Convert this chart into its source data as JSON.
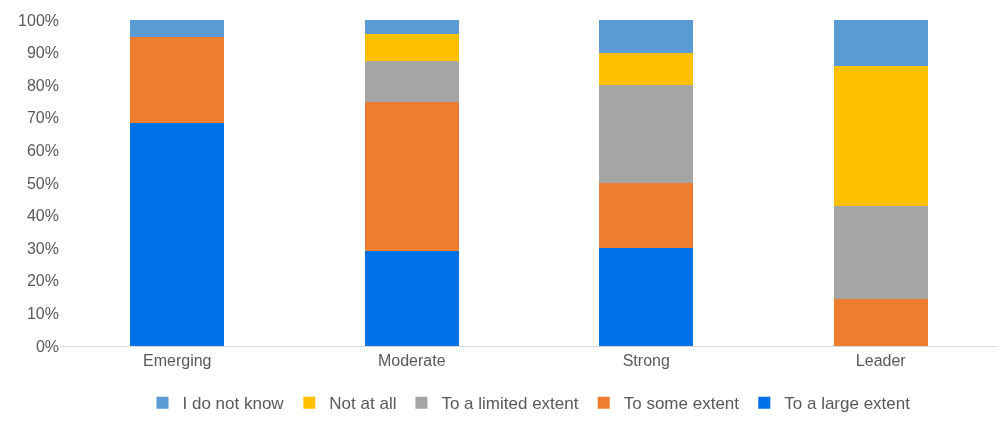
{
  "chart_data": {
    "type": "bar",
    "stacked": true,
    "categories": [
      "Emerging",
      "Moderate",
      "Strong",
      "Leader"
    ],
    "series": [
      {
        "name": "To a large extent",
        "color": "#0070e6",
        "values": [
          68.4,
          29.2,
          30,
          0
        ]
      },
      {
        "name": "To some extent",
        "color": "#ed7d31",
        "values": [
          26.3,
          45.8,
          20,
          14.3
        ]
      },
      {
        "name": "To a limited extent",
        "color": "#a5a5a5",
        "values": [
          0,
          12.5,
          30,
          28.6
        ]
      },
      {
        "name": "Not at all",
        "color": "#ffc000",
        "values": [
          0,
          8.3,
          10,
          42.9
        ]
      },
      {
        "name": "I do not know",
        "color": "#5b9bd5",
        "values": [
          5.3,
          4.2,
          10,
          14.3
        ]
      }
    ],
    "ylim": [
      0,
      100
    ],
    "yticks": [
      {
        "value": 0,
        "label": "0%"
      },
      {
        "value": 10,
        "label": "10%"
      },
      {
        "value": 20,
        "label": "20%"
      },
      {
        "value": 30,
        "label": "30%"
      },
      {
        "value": 40,
        "label": "40%"
      },
      {
        "value": 50,
        "label": "50%"
      },
      {
        "value": 60,
        "label": "60%"
      },
      {
        "value": 70,
        "label": "70%"
      },
      {
        "value": 80,
        "label": "80%"
      },
      {
        "value": 90,
        "label": "90%"
      },
      {
        "value": 100,
        "label": "100%"
      }
    ],
    "legend": "bottom",
    "grid": false
  }
}
